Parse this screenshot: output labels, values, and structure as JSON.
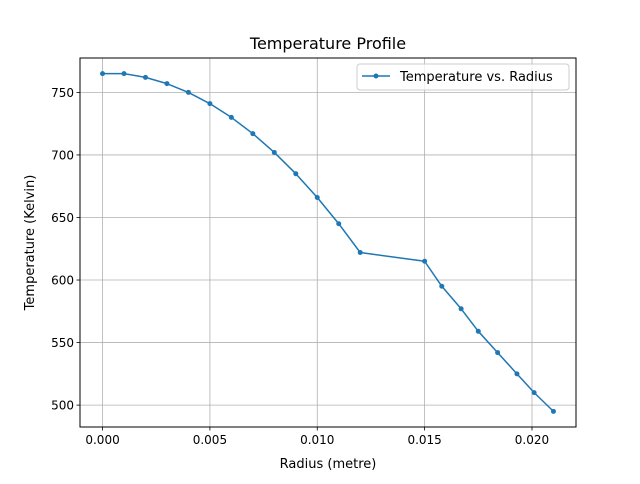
{
  "chart_data": {
    "type": "line",
    "title": "Temperature Profile",
    "xlabel": "Radius (metre)",
    "ylabel": "Temperature (Kelvin)",
    "xlim": [
      -0.00105,
      0.02205
    ],
    "ylim": [
      482.5,
      777.5
    ],
    "x_ticks": [
      0.0,
      0.005,
      0.01,
      0.015,
      0.02
    ],
    "x_tick_labels": [
      "0.000",
      "0.005",
      "0.010",
      "0.015",
      "0.020"
    ],
    "y_ticks": [
      500,
      550,
      600,
      650,
      700,
      750
    ],
    "y_tick_labels": [
      "500",
      "550",
      "600",
      "650",
      "700",
      "750"
    ],
    "grid": true,
    "legend_position": "top-right",
    "series": [
      {
        "name": "Temperature vs. Radius",
        "color": "#1f77b4",
        "marker": "circle",
        "x": [
          0.0,
          0.001,
          0.002,
          0.003,
          0.004,
          0.005,
          0.006,
          0.007,
          0.008,
          0.009,
          0.01,
          0.011,
          0.012,
          0.015,
          0.0158,
          0.0167,
          0.0175,
          0.0184,
          0.0193,
          0.0201,
          0.021
        ],
        "y": [
          765,
          765,
          762,
          757,
          750,
          741,
          730,
          717,
          702,
          685,
          666,
          645,
          622,
          615,
          595,
          577,
          559,
          542,
          525,
          510,
          495
        ]
      }
    ]
  }
}
